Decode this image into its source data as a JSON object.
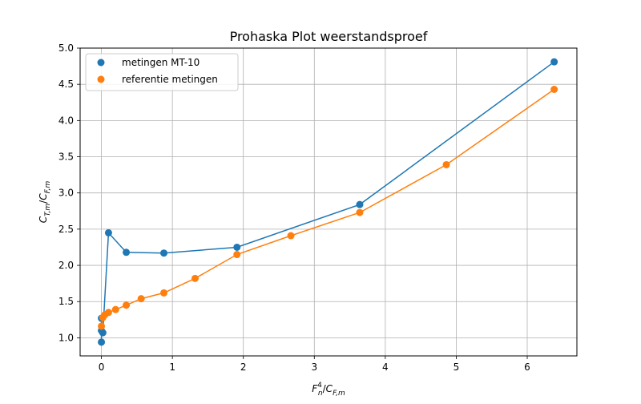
{
  "chart_data": {
    "type": "scatter",
    "title": "Prohaska Plot weerstandsproef",
    "xlabel": "F_n^4/C_F,m",
    "ylabel": "C_T,m/C_F,m",
    "xlim": [
      -0.3,
      6.7
    ],
    "ylim": [
      0.75,
      5.0
    ],
    "x_ticks": [
      0,
      1,
      2,
      3,
      4,
      5,
      6
    ],
    "y_ticks": [
      1.0,
      1.5,
      2.0,
      2.5,
      3.0,
      3.5,
      4.0,
      4.5,
      5.0
    ],
    "grid": true,
    "legend_position": "top-left",
    "series": [
      {
        "name": "metingen MT-10",
        "color": "#1f77b4",
        "markers": true,
        "connected": true,
        "x": [
          0.0,
          0.0,
          0.0,
          0.02,
          0.1,
          0.35,
          0.88,
          1.91,
          3.64,
          6.38
        ],
        "y": [
          0.94,
          1.1,
          1.27,
          1.07,
          2.45,
          2.18,
          2.17,
          2.25,
          2.84,
          4.81
        ]
      },
      {
        "name": "referentie metingen",
        "color": "#ff7f0e",
        "markers": true,
        "connected": true,
        "x": [
          0.0,
          0.02,
          0.05,
          0.1,
          0.2,
          0.35,
          0.56,
          0.88,
          1.32,
          1.91,
          2.67,
          3.64,
          4.86,
          6.38
        ],
        "y": [
          1.16,
          1.28,
          1.32,
          1.35,
          1.39,
          1.45,
          1.54,
          1.62,
          1.82,
          2.15,
          2.41,
          2.73,
          3.39,
          4.43
        ]
      }
    ]
  }
}
